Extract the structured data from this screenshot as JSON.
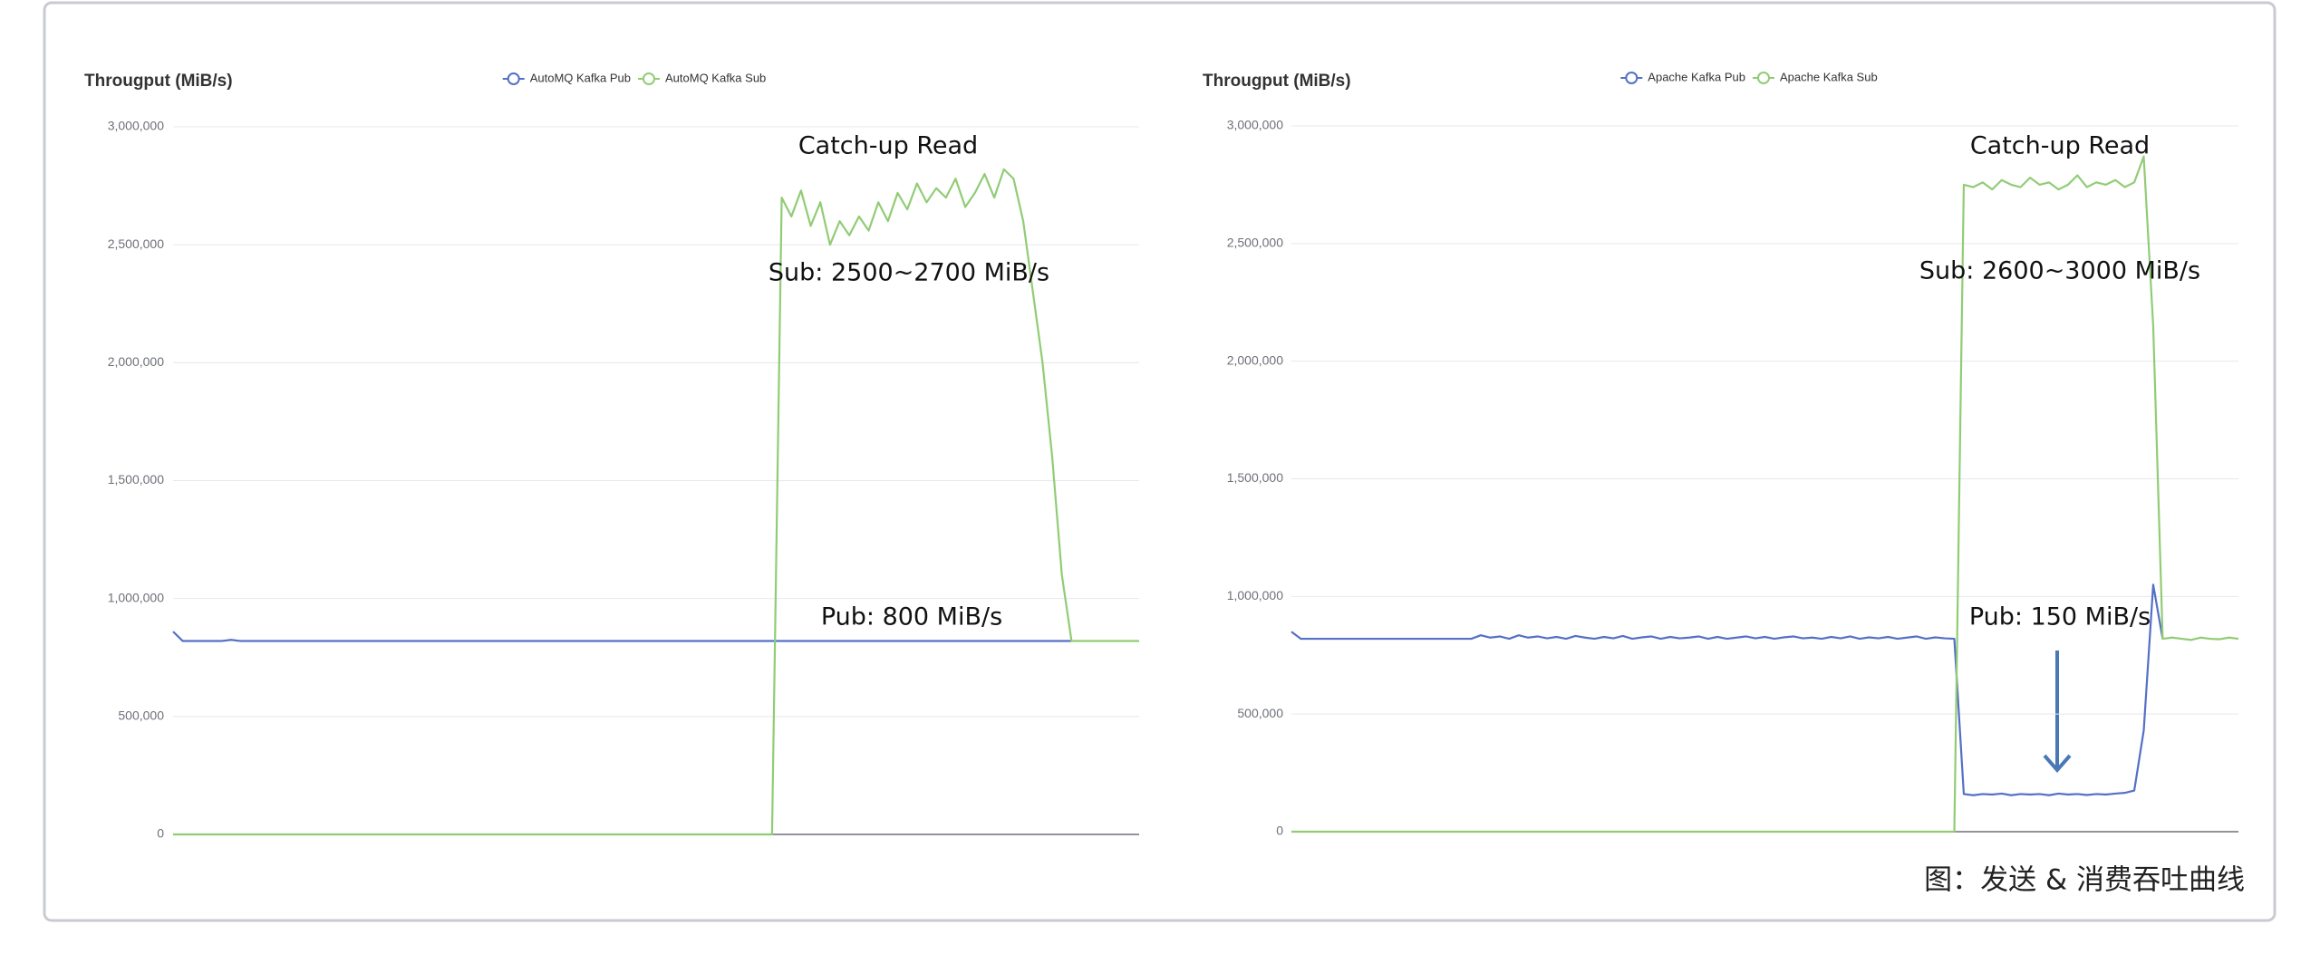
{
  "caption": "图：发送 & 消费吞吐曲线",
  "chart_data": [
    {
      "type": "line",
      "title": "Througput (MiB/s)",
      "ylim": [
        0,
        3000000
      ],
      "yticks": [
        0,
        {
          "value": 500000,
          "label": "500,000"
        },
        {
          "value": 1000000,
          "label": "1,000,000"
        },
        {
          "value": 1500000,
          "label": "1,500,000"
        },
        {
          "value": 2000000,
          "label": "2,000,000"
        },
        {
          "value": 2500000,
          "label": "2,500,000"
        },
        {
          "value": 3000000,
          "label": "3,000,000"
        }
      ],
      "grid": true,
      "annotations": [
        "Catch-up Read",
        "Sub: 2500~2700 MiB/s",
        "Pub: 800 MiB/s"
      ],
      "series": [
        {
          "name": "AutoMQ Kafka Pub",
          "color": "#5470c6",
          "values": [
            860000,
            820000,
            820000,
            820000,
            820000,
            820000,
            825000,
            820000,
            820000,
            820000,
            820000,
            820000,
            820000,
            820000,
            820000,
            820000,
            820000,
            820000,
            820000,
            820000,
            820000,
            820000,
            820000,
            820000,
            820000,
            820000,
            820000,
            820000,
            820000,
            820000,
            820000,
            820000,
            820000,
            820000,
            820000,
            820000,
            820000,
            820000,
            820000,
            820000,
            820000,
            820000,
            820000,
            820000,
            820000,
            820000,
            820000,
            820000,
            820000,
            820000,
            820000,
            820000,
            820000,
            820000,
            820000,
            820000,
            820000,
            820000,
            820000,
            820000,
            820000,
            820000,
            820000,
            820000,
            820000,
            820000,
            820000,
            820000,
            820000,
            820000,
            820000,
            820000,
            820000,
            820000,
            820000,
            820000,
            820000,
            820000,
            820000,
            820000,
            820000,
            820000,
            820000,
            820000,
            820000,
            820000,
            820000,
            820000,
            820000,
            820000,
            820000,
            820000,
            820000,
            820000,
            null,
            null,
            null,
            null,
            null,
            null,
            null
          ]
        },
        {
          "name": "AutoMQ Kafka Sub",
          "color": "#91cc75",
          "values": [
            0,
            0,
            0,
            0,
            0,
            0,
            0,
            0,
            0,
            0,
            0,
            0,
            0,
            0,
            0,
            0,
            0,
            0,
            0,
            0,
            0,
            0,
            0,
            0,
            0,
            0,
            0,
            0,
            0,
            0,
            0,
            0,
            0,
            0,
            0,
            0,
            0,
            0,
            0,
            0,
            0,
            0,
            0,
            0,
            0,
            0,
            0,
            0,
            0,
            0,
            0,
            0,
            0,
            0,
            0,
            0,
            0,
            0,
            0,
            0,
            0,
            0,
            0,
            2700000,
            2620000,
            2730000,
            2580000,
            2680000,
            2500000,
            2600000,
            2540000,
            2620000,
            2560000,
            2680000,
            2600000,
            2720000,
            2650000,
            2760000,
            2680000,
            2740000,
            2700000,
            2780000,
            2660000,
            2720000,
            2800000,
            2700000,
            2820000,
            2780000,
            2600000,
            2300000,
            2000000,
            1600000,
            1100000,
            820000,
            820000,
            820000,
            820000,
            820000,
            820000,
            820000,
            820000
          ]
        }
      ]
    },
    {
      "type": "line",
      "title": "Througput (MiB/s)",
      "ylim": [
        0,
        3000000
      ],
      "yticks": [
        0,
        {
          "value": 500000,
          "label": "500,000"
        },
        {
          "value": 1000000,
          "label": "1,000,000"
        },
        {
          "value": 1500000,
          "label": "1,500,000"
        },
        {
          "value": 2000000,
          "label": "2,000,000"
        },
        {
          "value": 2500000,
          "label": "2,500,000"
        },
        {
          "value": 3000000,
          "label": "3,000,000"
        }
      ],
      "grid": true,
      "annotations": [
        "Catch-up Read",
        "Sub: 2600~3000 MiB/s",
        "Pub: 150 MiB/s"
      ],
      "series": [
        {
          "name": "Apache Kafka Pub",
          "color": "#5470c6",
          "values": [
            850000,
            820000,
            820000,
            820000,
            820000,
            820000,
            820000,
            820000,
            820000,
            820000,
            820000,
            820000,
            820000,
            820000,
            820000,
            820000,
            820000,
            820000,
            820000,
            820000,
            835000,
            825000,
            830000,
            820000,
            835000,
            825000,
            830000,
            822000,
            828000,
            820000,
            832000,
            825000,
            820000,
            828000,
            822000,
            832000,
            820000,
            826000,
            830000,
            820000,
            828000,
            822000,
            825000,
            830000,
            820000,
            828000,
            820000,
            825000,
            830000,
            822000,
            828000,
            820000,
            826000,
            830000,
            822000,
            825000,
            820000,
            828000,
            822000,
            830000,
            820000,
            826000,
            822000,
            828000,
            820000,
            825000,
            830000,
            820000,
            826000,
            822000,
            820000,
            160000,
            155000,
            160000,
            158000,
            162000,
            155000,
            160000,
            158000,
            160000,
            155000,
            162000,
            158000,
            160000,
            156000,
            160000,
            158000,
            162000,
            165000,
            175000,
            430000,
            1050000,
            820000,
            null,
            null,
            null,
            null,
            null,
            null,
            null,
            null
          ]
        },
        {
          "name": "Apache Kafka Sub",
          "color": "#91cc75",
          "values": [
            0,
            0,
            0,
            0,
            0,
            0,
            0,
            0,
            0,
            0,
            0,
            0,
            0,
            0,
            0,
            0,
            0,
            0,
            0,
            0,
            0,
            0,
            0,
            0,
            0,
            0,
            0,
            0,
            0,
            0,
            0,
            0,
            0,
            0,
            0,
            0,
            0,
            0,
            0,
            0,
            0,
            0,
            0,
            0,
            0,
            0,
            0,
            0,
            0,
            0,
            0,
            0,
            0,
            0,
            0,
            0,
            0,
            0,
            0,
            0,
            0,
            0,
            0,
            0,
            0,
            0,
            0,
            0,
            0,
            0,
            0,
            2750000,
            2740000,
            2760000,
            2730000,
            2770000,
            2750000,
            2740000,
            2780000,
            2750000,
            2760000,
            2730000,
            2750000,
            2790000,
            2740000,
            2760000,
            2750000,
            2770000,
            2740000,
            2760000,
            2870000,
            2150000,
            820000,
            825000,
            820000,
            815000,
            825000,
            820000,
            818000,
            825000,
            820000
          ]
        }
      ]
    }
  ]
}
